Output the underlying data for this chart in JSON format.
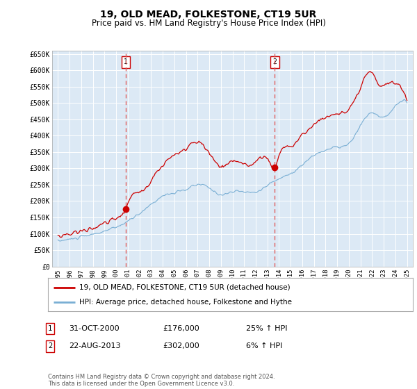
{
  "title": "19, OLD MEAD, FOLKESTONE, CT19 5UR",
  "subtitle": "Price paid vs. HM Land Registry's House Price Index (HPI)",
  "title_fontsize": 10,
  "subtitle_fontsize": 8.5,
  "background_color": "#ffffff",
  "plot_bg_color": "#dce9f5",
  "grid_color": "#c8d8e8",
  "hpi_color": "#7aafd4",
  "price_color": "#cc0000",
  "dashed_color": "#e06060",
  "yticks": [
    0,
    50000,
    100000,
    150000,
    200000,
    250000,
    300000,
    350000,
    400000,
    450000,
    500000,
    550000,
    600000,
    650000
  ],
  "annotation1": {
    "label": "1",
    "date_label": "31-OCT-2000",
    "price_label": "£176,000",
    "pct_label": "25% ↑ HPI",
    "x_year": 2000.83
  },
  "annotation2": {
    "label": "2",
    "date_label": "22-AUG-2013",
    "price_label": "£302,000",
    "pct_label": "6% ↑ HPI",
    "x_year": 2013.64
  },
  "legend_line1": "19, OLD MEAD, FOLKESTONE, CT19 5UR (detached house)",
  "legend_line2": "HPI: Average price, detached house, Folkestone and Hythe",
  "footer": "Contains HM Land Registry data © Crown copyright and database right 2024.\nThis data is licensed under the Open Government Licence v3.0.",
  "xmin": 1994.5,
  "xmax": 2025.5,
  "ylim_max": 660000
}
